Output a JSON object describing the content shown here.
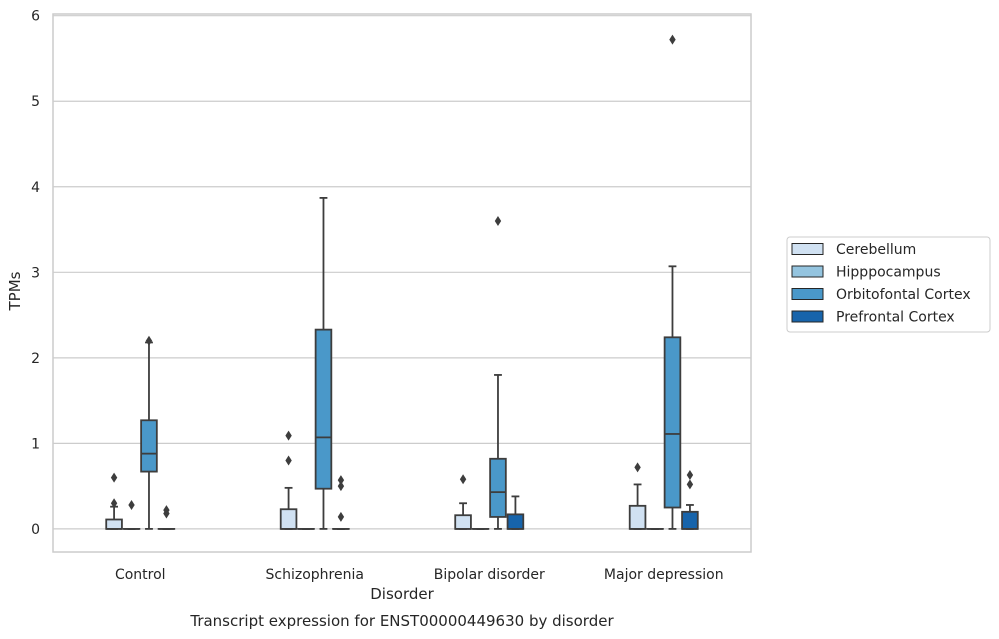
{
  "chart_data": {
    "type": "box",
    "xlabel": "Disorder",
    "ylabel": "TPMs",
    "caption": "Transcript expression for ENST00000449630 by disorder",
    "ylim": [
      -0.27,
      6.02
    ],
    "yticks": [
      "0",
      "1",
      "2",
      "3",
      "4",
      "5",
      "6"
    ],
    "grid": "horizontal",
    "legend_position": "right",
    "categories": [
      "Control",
      "Schizophrenia",
      "Bipolar disorder",
      "Major depression"
    ],
    "series": [
      {
        "name": "Cerebellum",
        "color": "#d0e1f2",
        "boxes": [
          {
            "q1": 0.0,
            "median": 0.0,
            "q3": 0.11,
            "whisker_low": 0.0,
            "whisker_high": 0.26,
            "outliers": [
              0.3,
              0.6
            ]
          },
          {
            "q1": 0.0,
            "median": 0.0,
            "q3": 0.23,
            "whisker_low": 0.0,
            "whisker_high": 0.48,
            "outliers": [
              0.8,
              1.09
            ]
          },
          {
            "q1": 0.0,
            "median": 0.0,
            "q3": 0.16,
            "whisker_low": 0.0,
            "whisker_high": 0.3,
            "outliers": [
              0.58
            ]
          },
          {
            "q1": 0.0,
            "median": 0.0,
            "q3": 0.27,
            "whisker_low": 0.0,
            "whisker_high": 0.52,
            "outliers": [
              0.72
            ]
          }
        ]
      },
      {
        "name": "Hipppocampus",
        "color": "#94c4df",
        "boxes": [
          {
            "q1": 0.0,
            "median": 0.0,
            "q3": 0.0,
            "whisker_low": 0.0,
            "whisker_high": 0.0,
            "outliers": [
              0.28
            ]
          },
          {
            "q1": 0.0,
            "median": 0.0,
            "q3": 0.0,
            "whisker_low": 0.0,
            "whisker_high": 0.0,
            "outliers": []
          },
          {
            "q1": 0.0,
            "median": 0.0,
            "q3": 0.0,
            "whisker_low": 0.0,
            "whisker_high": 0.0,
            "outliers": []
          },
          {
            "q1": 0.0,
            "median": 0.0,
            "q3": 0.0,
            "whisker_low": 0.0,
            "whisker_high": 0.0,
            "outliers": []
          }
        ]
      },
      {
        "name": "Orbitofontal Cortex",
        "color": "#4a98c9",
        "boxes": [
          {
            "q1": 0.67,
            "median": 0.88,
            "q3": 1.27,
            "whisker_low": 0.0,
            "whisker_high": 2.18,
            "outliers": [
              2.2
            ]
          },
          {
            "q1": 0.47,
            "median": 1.07,
            "q3": 2.33,
            "whisker_low": 0.0,
            "whisker_high": 3.87,
            "outliers": []
          },
          {
            "q1": 0.14,
            "median": 0.43,
            "q3": 0.82,
            "whisker_low": 0.0,
            "whisker_high": 1.8,
            "outliers": [
              3.6
            ]
          },
          {
            "q1": 0.25,
            "median": 1.11,
            "q3": 2.24,
            "whisker_low": 0.0,
            "whisker_high": 3.07,
            "outliers": [
              5.72
            ]
          }
        ]
      },
      {
        "name": "Prefrontal Cortex",
        "color": "#1764ab",
        "boxes": [
          {
            "q1": 0.0,
            "median": 0.0,
            "q3": 0.0,
            "whisker_low": 0.0,
            "whisker_high": 0.0,
            "outliers": [
              0.18,
              0.22
            ]
          },
          {
            "q1": 0.0,
            "median": 0.0,
            "q3": 0.0,
            "whisker_low": 0.0,
            "whisker_high": 0.0,
            "outliers": [
              0.14,
              0.5,
              0.57
            ]
          },
          {
            "q1": 0.0,
            "median": 0.0,
            "q3": 0.17,
            "whisker_low": 0.0,
            "whisker_high": 0.38,
            "outliers": []
          },
          {
            "q1": 0.0,
            "median": 0.0,
            "q3": 0.2,
            "whisker_low": 0.0,
            "whisker_high": 0.28,
            "outliers": [
              0.52,
              0.63
            ]
          }
        ]
      }
    ]
  }
}
